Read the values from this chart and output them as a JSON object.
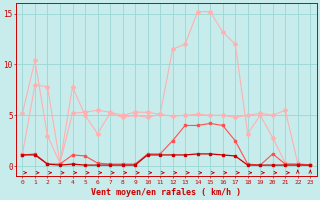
{
  "x": [
    0,
    1,
    2,
    3,
    4,
    5,
    6,
    7,
    8,
    9,
    10,
    11,
    12,
    13,
    14,
    15,
    16,
    17,
    18,
    19,
    20,
    21,
    22,
    23
  ],
  "line_light1": [
    5.2,
    10.4,
    3.0,
    0.3,
    5.2,
    5.3,
    5.5,
    5.3,
    5.0,
    5.3,
    5.3,
    5.1,
    4.9,
    5.0,
    5.1,
    5.0,
    5.0,
    4.8,
    5.0,
    5.2,
    5.0,
    5.5,
    0.3,
    0.1
  ],
  "line_light2": [
    1.2,
    8.0,
    7.8,
    0.3,
    7.8,
    5.0,
    3.2,
    5.2,
    4.8,
    5.0,
    4.8,
    5.1,
    11.5,
    12.0,
    15.2,
    15.2,
    13.2,
    12.0,
    3.2,
    5.0,
    2.8,
    0.3,
    0.2,
    0.1
  ],
  "line_mid": [
    1.1,
    1.2,
    0.2,
    0.2,
    1.1,
    1.0,
    0.3,
    0.2,
    0.2,
    0.2,
    1.2,
    1.2,
    2.5,
    4.0,
    4.0,
    4.2,
    4.0,
    2.5,
    0.2,
    0.1,
    1.2,
    0.2,
    0.2,
    0.1
  ],
  "line_dark": [
    1.1,
    1.1,
    0.2,
    0.1,
    0.2,
    0.1,
    0.1,
    0.1,
    0.1,
    0.1,
    1.1,
    1.1,
    1.1,
    1.1,
    1.2,
    1.2,
    1.1,
    1.0,
    0.1,
    0.1,
    0.1,
    0.1,
    0.1,
    0.1
  ],
  "color_light": "#FFB0B0",
  "color_mid": "#FF5050",
  "color_dark": "#CC0000",
  "bg_color": "#C8ECEC",
  "grid_color": "#A0D8D8",
  "axis_color": "#CC0000",
  "text_color": "#CC0000",
  "xlabel": "Vent moyen/en rafales ( km/h )",
  "ylim": [
    -1.0,
    16
  ],
  "xlim": [
    -0.5,
    23.5
  ],
  "yticks": [
    0,
    5,
    10,
    15
  ]
}
